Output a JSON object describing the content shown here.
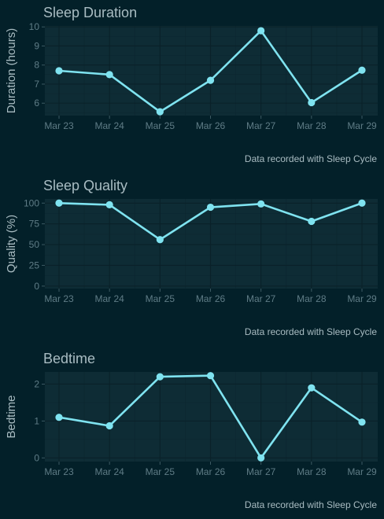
{
  "colors": {
    "background": "#032029",
    "panel": "#0e2c35",
    "line": "#7fe3f0",
    "text": "#a9bcc2",
    "tick": "#5f7c86"
  },
  "chart_data": [
    {
      "type": "line",
      "title": "Sleep Duration",
      "ylabel": "Duration (hours)",
      "xlabel": "",
      "caption": "Data recorded with Sleep Cycle",
      "x": [
        "Mar 23",
        "Mar 24",
        "Mar 25",
        "Mar 26",
        "Mar 27",
        "Mar 28",
        "Mar 29"
      ],
      "values": [
        7.7,
        7.5,
        5.55,
        7.2,
        9.8,
        6.03,
        7.73
      ],
      "yticks": [
        6,
        7,
        8,
        9,
        10
      ],
      "ylim": [
        5.35,
        10.05
      ],
      "grid": true
    },
    {
      "type": "line",
      "title": "Sleep Quality",
      "ylabel": "Quality (%)",
      "xlabel": "",
      "caption": "Data recorded with Sleep Cycle",
      "x": [
        "Mar 23",
        "Mar 24",
        "Mar 25",
        "Mar 26",
        "Mar 27",
        "Mar 28",
        "Mar 29"
      ],
      "values": [
        100,
        98,
        56,
        95,
        99,
        78,
        100
      ],
      "yticks": [
        0,
        25,
        50,
        75,
        100
      ],
      "ylim": [
        -3,
        105
      ],
      "grid": true
    },
    {
      "type": "line",
      "title": "Bedtime",
      "ylabel": "Bedtime",
      "xlabel": "",
      "caption": "Data recorded with Sleep Cycle",
      "x": [
        "Mar 23",
        "Mar 24",
        "Mar 25",
        "Mar 26",
        "Mar 27",
        "Mar 28",
        "Mar 29"
      ],
      "values": [
        1.1,
        0.87,
        2.2,
        2.23,
        0.0,
        1.9,
        0.97
      ],
      "yticks": [
        0,
        1,
        2
      ],
      "ylim": [
        -0.1,
        2.33
      ],
      "grid": true
    }
  ]
}
